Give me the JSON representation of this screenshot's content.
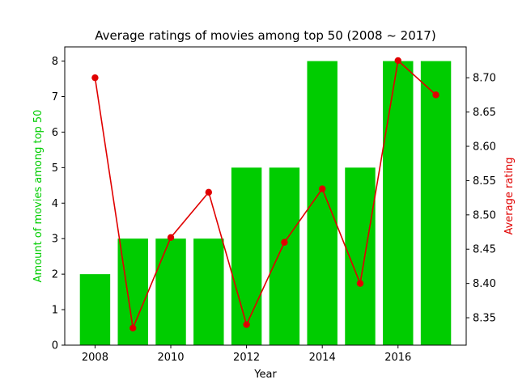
{
  "chart_data": {
    "type": "bar",
    "title": "Average ratings of movies among top 50 (2008 ~ 2017)",
    "xlabel": "Year",
    "x_ticks": [
      2008,
      2010,
      2012,
      2014,
      2016
    ],
    "xlim": [
      2007.2,
      2017.8
    ],
    "grid": false,
    "categories": [
      2008,
      2009,
      2010,
      2011,
      2012,
      2013,
      2014,
      2015,
      2016,
      2017
    ],
    "series": [
      {
        "type": "bar",
        "axis": "left",
        "color": "#00cc00",
        "values": [
          2,
          3,
          3,
          3,
          5,
          5,
          8,
          5,
          8,
          8
        ]
      },
      {
        "type": "line",
        "axis": "right",
        "color": "#e00000",
        "values": [
          8.7,
          8.335,
          8.467,
          8.533,
          8.34,
          8.46,
          8.538,
          8.4,
          8.725,
          8.675
        ]
      }
    ],
    "left_axis": {
      "label": "Amount of movies among top 50",
      "color": "#00cc00",
      "ylim": [
        0,
        8.4
      ],
      "ticks": [
        "0",
        "1",
        "2",
        "3",
        "4",
        "5",
        "6",
        "7",
        "8"
      ]
    },
    "right_axis": {
      "label": "Average rating",
      "color": "#e00000",
      "ylim": [
        8.31,
        8.745
      ],
      "ticks": [
        "8.35",
        "8.40",
        "8.45",
        "8.50",
        "8.55",
        "8.60",
        "8.65",
        "8.70"
      ]
    }
  }
}
